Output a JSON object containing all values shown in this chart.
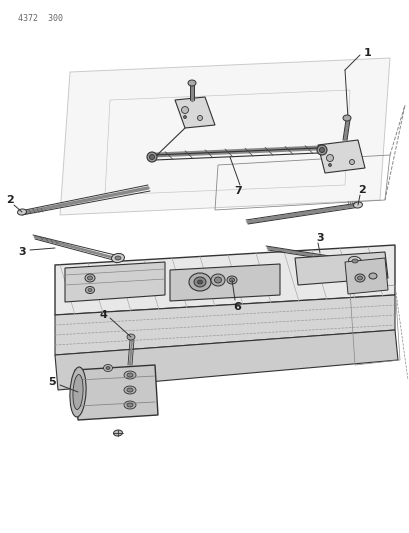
{
  "header_text": "4372  300",
  "background_color": "#ffffff",
  "line_color": "#333333",
  "label_color": "#222222",
  "figsize": [
    4.1,
    5.33
  ],
  "dpi": 100
}
